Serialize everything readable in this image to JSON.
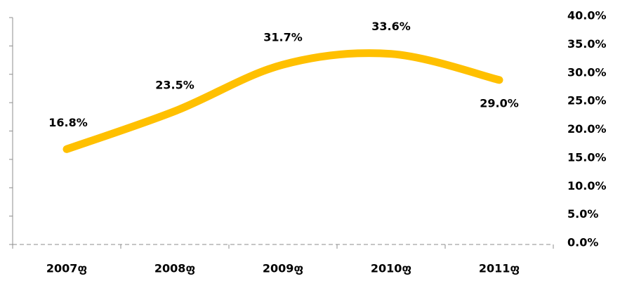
{
  "chart_data": {
    "type": "line",
    "categories": [
      "2007ფ",
      "2008ფ",
      "2009ფ",
      "2010ფ",
      "2011ფ"
    ],
    "series": [
      {
        "color": "#ffc000",
        "values": [
          16.8,
          23.5,
          31.7,
          33.6,
          29.0
        ],
        "value_labels": [
          "16.8%",
          "23.5%",
          "31.7%",
          "33.6%",
          "29.0%"
        ]
      }
    ],
    "ylim": [
      0,
      40
    ],
    "yticks": [
      {
        "value": 0,
        "label": "0.0%"
      },
      {
        "value": 5,
        "label": "5.0%"
      },
      {
        "value": 10,
        "label": "10.0%"
      },
      {
        "value": 15,
        "label": "15.0%"
      },
      {
        "value": 20,
        "label": "20.0%"
      },
      {
        "value": 25,
        "label": "25.0%"
      },
      {
        "value": 30,
        "label": "30.0%"
      },
      {
        "value": 35,
        "label": "35.0%"
      },
      {
        "value": 40,
        "label": "40.0%"
      }
    ],
    "grid": false
  }
}
